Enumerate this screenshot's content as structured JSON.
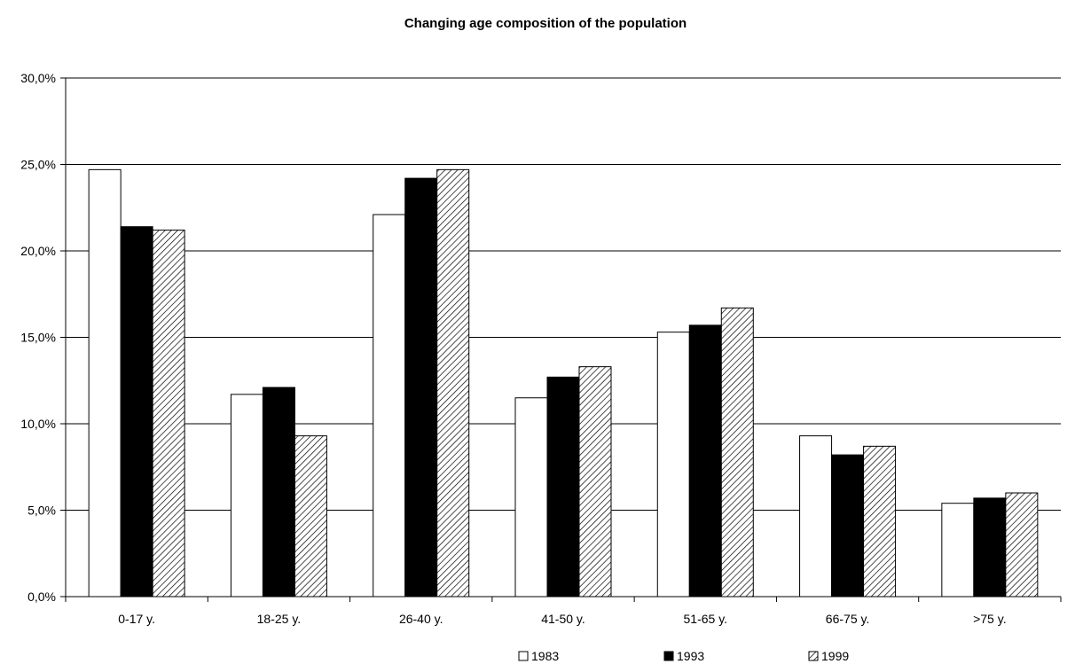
{
  "chart_data": {
    "type": "bar",
    "title": "Changing age composition of the population",
    "xlabel": "",
    "ylabel": "",
    "categories": [
      "0-17 y.",
      "18-25 y.",
      "26-40 y.",
      "41-50 y.",
      "51-65 y.",
      "66-75 y.",
      ">75 y."
    ],
    "series": [
      {
        "name": "1983",
        "fill": "white",
        "values": [
          24.7,
          11.7,
          22.1,
          11.5,
          15.3,
          9.3,
          5.4
        ]
      },
      {
        "name": "1993",
        "fill": "black",
        "values": [
          21.4,
          12.1,
          24.2,
          12.7,
          15.7,
          8.2,
          5.7
        ]
      },
      {
        "name": "1999",
        "fill": "hatched",
        "values": [
          21.2,
          9.3,
          24.7,
          13.3,
          16.7,
          8.7,
          6.0
        ]
      }
    ],
    "ylim": [
      0,
      30
    ],
    "yticks": [
      "0,0%",
      "5,0%",
      "10,0%",
      "15,0%",
      "20,0%",
      "25,0%",
      "30,0%"
    ],
    "ytick_values": [
      0,
      5,
      10,
      15,
      20,
      25,
      30
    ],
    "grid": true,
    "legend": "bottom"
  }
}
